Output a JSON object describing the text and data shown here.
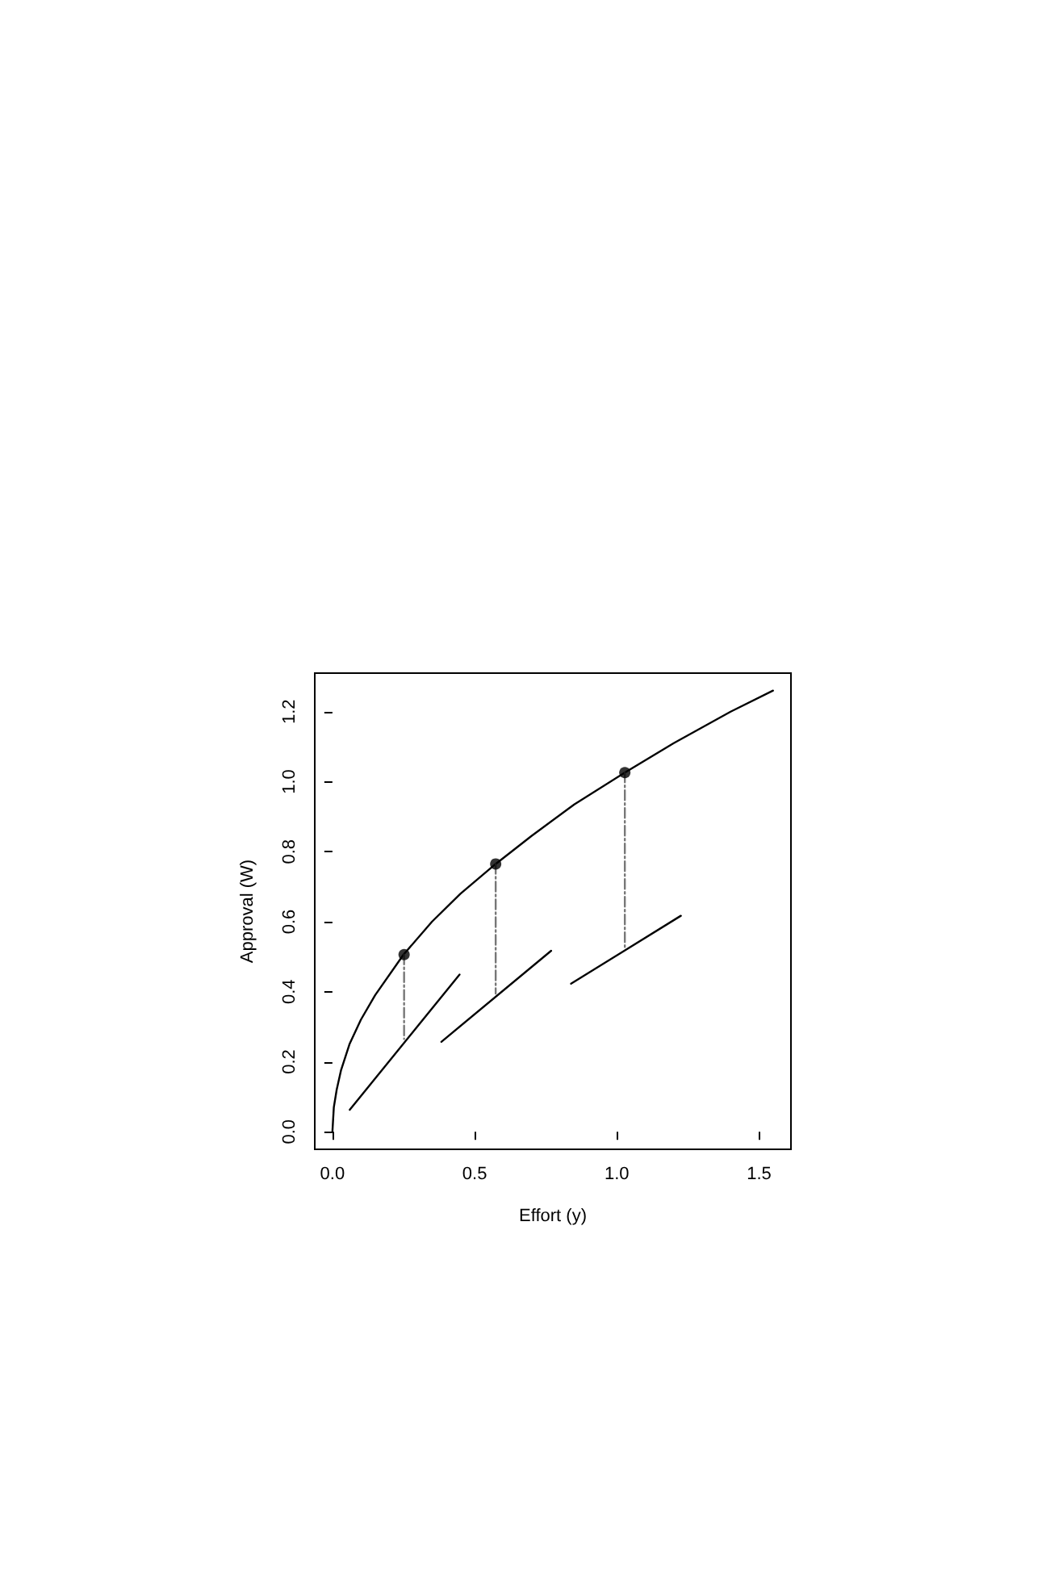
{
  "chart_data": {
    "type": "line",
    "xlabel": "Effort (y)",
    "ylabel": "Approval (W)",
    "xlim": [
      -0.062,
      1.612
    ],
    "ylim": [
      -0.05,
      1.31
    ],
    "xticks": [
      {
        "value": 0,
        "label": "0.0"
      },
      {
        "value": 0.5,
        "label": "0.5"
      },
      {
        "value": 1,
        "label": "1.0"
      },
      {
        "value": 1.5,
        "label": "1.5"
      }
    ],
    "yticks": [
      {
        "value": 0,
        "label": "0.0"
      },
      {
        "value": 0.2,
        "label": "0.2"
      },
      {
        "value": 0.4,
        "label": "0.4"
      },
      {
        "value": 0.6,
        "label": "0.6"
      },
      {
        "value": 0.8,
        "label": "0.8"
      },
      {
        "value": 1,
        "label": "1.0"
      },
      {
        "value": 1.2,
        "label": "1.2"
      }
    ],
    "grid": false,
    "marker": "none",
    "line_style": "solid",
    "series": [
      {
        "color": "#000000",
        "x": [
          0,
          0.005,
          0.015,
          0.03,
          0.06,
          0.1,
          0.15,
          0.25,
          0.35,
          0.45,
          0.574,
          0.7,
          0.85,
          1.028,
          1.2,
          1.4,
          1.549
        ],
        "values": [
          0,
          0.07,
          0.12,
          0.175,
          0.25,
          0.32,
          0.39,
          0.506,
          0.6,
          0.68,
          0.765,
          0.845,
          0.935,
          1.026,
          1.11,
          1.2,
          1.26
        ]
      },
      {
        "color": "#000000",
        "x": [
          0.061,
          0.447
        ],
        "values": [
          0.063,
          0.449
        ]
      },
      {
        "color": "#000000",
        "x": [
          0.383,
          0.769
        ],
        "values": [
          0.257,
          0.517
        ]
      },
      {
        "color": "#000000",
        "x": [
          0.839,
          1.225
        ],
        "values": [
          0.423,
          0.617
        ]
      },
      {
        "color": "#777777",
        "line_style": "dashed",
        "x": [
          0.252,
          0.252
        ],
        "values": [
          0.506,
          0.265
        ]
      },
      {
        "color": "#777777",
        "line_style": "dashed",
        "x": [
          0.574,
          0.574
        ],
        "values": [
          0.765,
          0.395
        ]
      },
      {
        "color": "#777777",
        "line_style": "dashed",
        "x": [
          1.028,
          1.028
        ],
        "values": [
          1.026,
          0.526
        ]
      },
      {
        "type": "scatter",
        "color": "#000000",
        "marker": "circle",
        "x": [
          0.252,
          0.574,
          1.028
        ],
        "values": [
          0.506,
          0.765,
          1.026
        ]
      }
    ]
  }
}
